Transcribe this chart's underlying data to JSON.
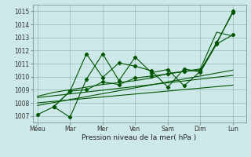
{
  "bg_color": "#cce8e8",
  "grid_color": "#99bbbb",
  "line_color": "#005500",
  "xlabel": "Pression niveau de la mer( hPa )",
  "xtick_labels": [
    "Méeu",
    "Mar",
    "Mer",
    "Ven",
    "Sam",
    "Dim",
    "Lun"
  ],
  "xtick_positions": [
    0,
    2,
    4,
    6,
    8,
    10,
    12
  ],
  "ylim": [
    1006.5,
    1015.5
  ],
  "yticks": [
    1007,
    1008,
    1009,
    1010,
    1011,
    1012,
    1013,
    1014,
    1015
  ],
  "xlim": [
    -0.3,
    12.8
  ],
  "series": [
    {
      "x": [
        0,
        1,
        2,
        3,
        4,
        5,
        6,
        7,
        8,
        9,
        10,
        11,
        12
      ],
      "y": [
        1007.1,
        1007.7,
        1008.9,
        1009.0,
        1009.6,
        1009.4,
        1009.9,
        1010.05,
        1010.2,
        1010.4,
        1010.5,
        1012.55,
        1015.0
      ],
      "marker": true
    },
    {
      "x": [
        0,
        1,
        2,
        3,
        4,
        5,
        6,
        7,
        8,
        9,
        10,
        11,
        12
      ],
      "y": [
        1008.5,
        1008.8,
        1009.0,
        1009.2,
        1009.4,
        1009.55,
        1009.7,
        1009.9,
        1010.25,
        1010.4,
        1010.6,
        1013.4,
        1013.1
      ],
      "marker": false
    },
    {
      "x": [
        1,
        2,
        3,
        4,
        5,
        6,
        7,
        8,
        9,
        10,
        11,
        12
      ],
      "y": [
        1007.7,
        1006.9,
        1009.8,
        1011.75,
        1009.7,
        1011.5,
        1010.3,
        1010.55,
        1009.3,
        1010.4,
        1012.6,
        1014.9
      ],
      "marker": true
    },
    {
      "x": [
        1,
        2,
        3,
        4,
        5,
        6,
        7,
        8,
        9,
        10,
        11,
        12
      ],
      "y": [
        1007.7,
        1008.9,
        1011.75,
        1009.95,
        1011.05,
        1010.8,
        1010.45,
        1009.2,
        1010.6,
        1010.35,
        1012.5,
        1013.2
      ],
      "marker": true
    },
    {
      "x": [
        0,
        12
      ],
      "y": [
        1007.8,
        1010.5
      ],
      "marker": false
    },
    {
      "x": [
        0,
        12
      ],
      "y": [
        1008.4,
        1010.1
      ],
      "marker": false
    },
    {
      "x": [
        0,
        12
      ],
      "y": [
        1008.0,
        1009.35
      ],
      "marker": false
    }
  ]
}
